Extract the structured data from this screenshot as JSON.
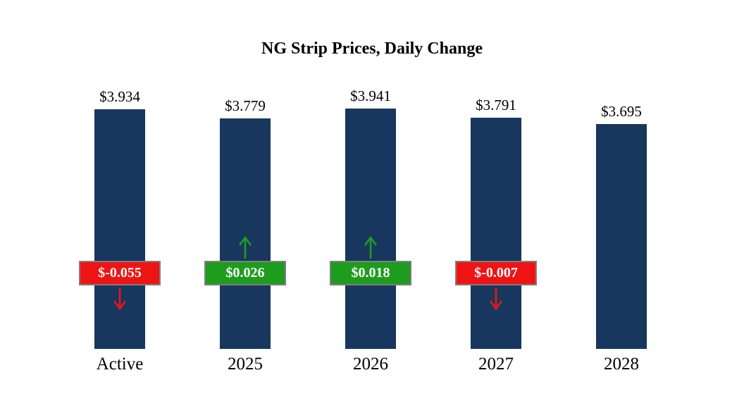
{
  "title": "NG Strip Prices, Daily Change",
  "chart_data": {
    "type": "bar",
    "title": "NG Strip Prices, Daily Change",
    "categories": [
      "Active",
      "2025",
      "2026",
      "2027",
      "2028"
    ],
    "values": [
      3.934,
      3.779,
      3.941,
      3.791,
      3.695
    ],
    "value_labels": [
      "$3.934",
      "$3.779",
      "$3.941",
      "$3.791",
      "$3.695"
    ],
    "changes": [
      -0.055,
      0.026,
      0.018,
      -0.007,
      null
    ],
    "change_labels": [
      "$-0.055",
      "$0.026",
      "$0.018",
      "$-0.007",
      null
    ],
    "xlabel": "",
    "ylabel": "",
    "ylim": [
      0,
      4.2
    ],
    "grid": false,
    "legend": "none",
    "bar_color": "#17375E",
    "up_color": "#1E9C1E",
    "down_color": "#EE1414",
    "badge_border_color": "#7F7F7F",
    "background_color": "#FFFFFF"
  }
}
